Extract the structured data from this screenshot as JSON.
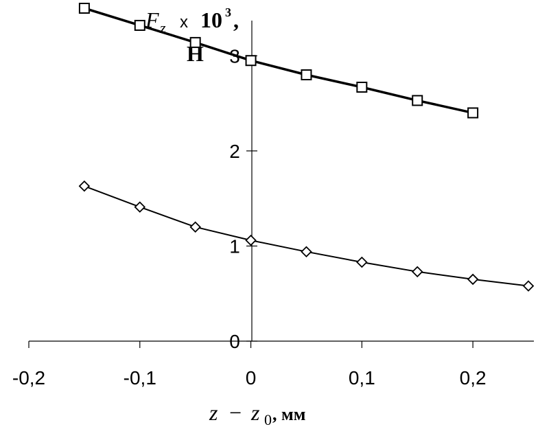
{
  "chart_data": {
    "type": "line",
    "xlim": [
      -0.2,
      0.25
    ],
    "ylim": [
      0,
      3.5
    ],
    "grid": false,
    "x_ticks": [
      {
        "value": -0.2,
        "label": "-0,2"
      },
      {
        "value": -0.1,
        "label": "-0,1"
      },
      {
        "value": 0,
        "label": "0"
      },
      {
        "value": 0.1,
        "label": "0,1"
      },
      {
        "value": 0.2,
        "label": "0,2"
      }
    ],
    "y_ticks": [
      {
        "value": 0,
        "label": "0"
      },
      {
        "value": 1,
        "label": "1"
      },
      {
        "value": 2,
        "label": "2"
      },
      {
        "value": 3,
        "label": "3"
      }
    ],
    "ylabel": {
      "symbol": "F",
      "subscript": "z",
      "times": "x",
      "base": "10",
      "exponent": "3",
      "comma": ",",
      "unit": "Н"
    },
    "xlabel": {
      "var1": "z",
      "minus": "−",
      "var2": "z",
      "subscript": "0",
      "unit": ", мм"
    },
    "series": [
      {
        "marker": "square",
        "line_width": 3.5,
        "x": [
          -0.15,
          -0.1,
          -0.05,
          0,
          0.05,
          0.1,
          0.15,
          0.2
        ],
        "y": [
          3.5,
          3.32,
          3.14,
          2.95,
          2.8,
          2.67,
          2.53,
          2.4
        ]
      },
      {
        "marker": "diamond",
        "line_width": 2,
        "x": [
          -0.15,
          -0.1,
          -0.05,
          0,
          0.05,
          0.1,
          0.15,
          0.2,
          0.25
        ],
        "y": [
          1.63,
          1.41,
          1.2,
          1.06,
          0.94,
          0.83,
          0.73,
          0.65,
          0.58
        ]
      }
    ]
  }
}
